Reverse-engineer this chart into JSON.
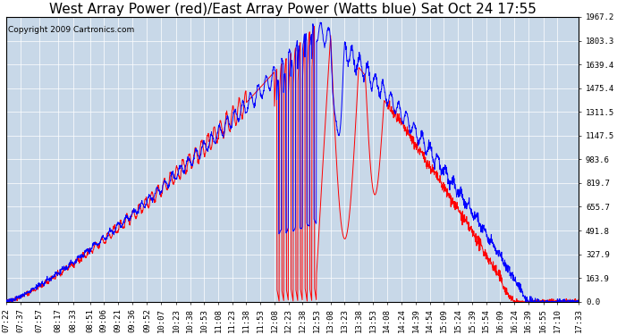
{
  "title": "West Array Power (red)/East Array Power (Watts blue) Sat Oct 24 17:55",
  "copyright": "Copyright 2009 Cartronics.com",
  "bg_color": "#ffffff",
  "plot_bg_color": "#c8d8e8",
  "grid_color": "#ffffff",
  "red_color": "#ff0000",
  "blue_color": "#0000ff",
  "ymax": 1967.2,
  "ymin": 0.0,
  "yticks": [
    0.0,
    163.9,
    327.9,
    491.8,
    655.7,
    819.7,
    983.6,
    1147.5,
    1311.5,
    1475.4,
    1639.4,
    1803.3,
    1967.2
  ],
  "xtick_labels": [
    "07:22",
    "07:37",
    "07:57",
    "08:17",
    "08:33",
    "08:51",
    "09:06",
    "09:21",
    "09:36",
    "09:52",
    "10:07",
    "10:23",
    "10:38",
    "10:53",
    "11:08",
    "11:23",
    "11:38",
    "11:53",
    "12:08",
    "12:23",
    "12:38",
    "12:53",
    "13:08",
    "13:23",
    "13:38",
    "13:53",
    "14:08",
    "14:24",
    "14:39",
    "14:54",
    "15:09",
    "15:24",
    "15:39",
    "15:54",
    "16:09",
    "16:24",
    "16:39",
    "16:55",
    "17:10",
    "17:33"
  ],
  "title_fontsize": 11,
  "tick_fontsize": 6.5,
  "copyright_fontsize": 6.5,
  "linewidth": 0.7
}
